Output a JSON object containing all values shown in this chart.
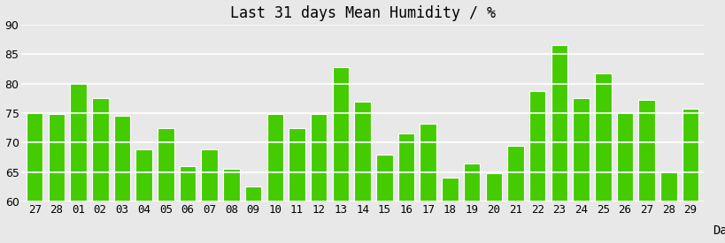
{
  "title": "Last 31 days Mean Humidity / %",
  "xlabel": "Day",
  "categories": [
    "27",
    "28",
    "01",
    "02",
    "03",
    "04",
    "05",
    "06",
    "07",
    "08",
    "09",
    "10",
    "11",
    "12",
    "13",
    "14",
    "15",
    "16",
    "17",
    "18",
    "19",
    "20",
    "21",
    "22",
    "23",
    "24",
    "25",
    "26",
    "27",
    "28",
    "29"
  ],
  "values": [
    75.0,
    74.8,
    80.1,
    77.5,
    74.5,
    68.9,
    72.5,
    66.0,
    68.8,
    65.6,
    62.5,
    74.8,
    72.5,
    74.8,
    82.8,
    77.0,
    68.0,
    71.5,
    73.2,
    64.0,
    66.5,
    64.8,
    69.5,
    78.8,
    86.5,
    77.5,
    81.8,
    75.0,
    77.3,
    65.0,
    75.7
  ],
  "bar_color": "#44cc00",
  "bar_edge_color": "#ffffff",
  "background_color": "#e8e8e8",
  "plot_background_color": "#e8e8e8",
  "title_fontsize": 12,
  "xlabel_fontsize": 10,
  "tick_fontsize": 9,
  "ylim_min": 60,
  "ylim_max": 90,
  "yticks": [
    60,
    65,
    70,
    75,
    80,
    85,
    90
  ],
  "grid_color": "#ffffff",
  "grid_linewidth": 1.2,
  "bar_bottom": 60
}
